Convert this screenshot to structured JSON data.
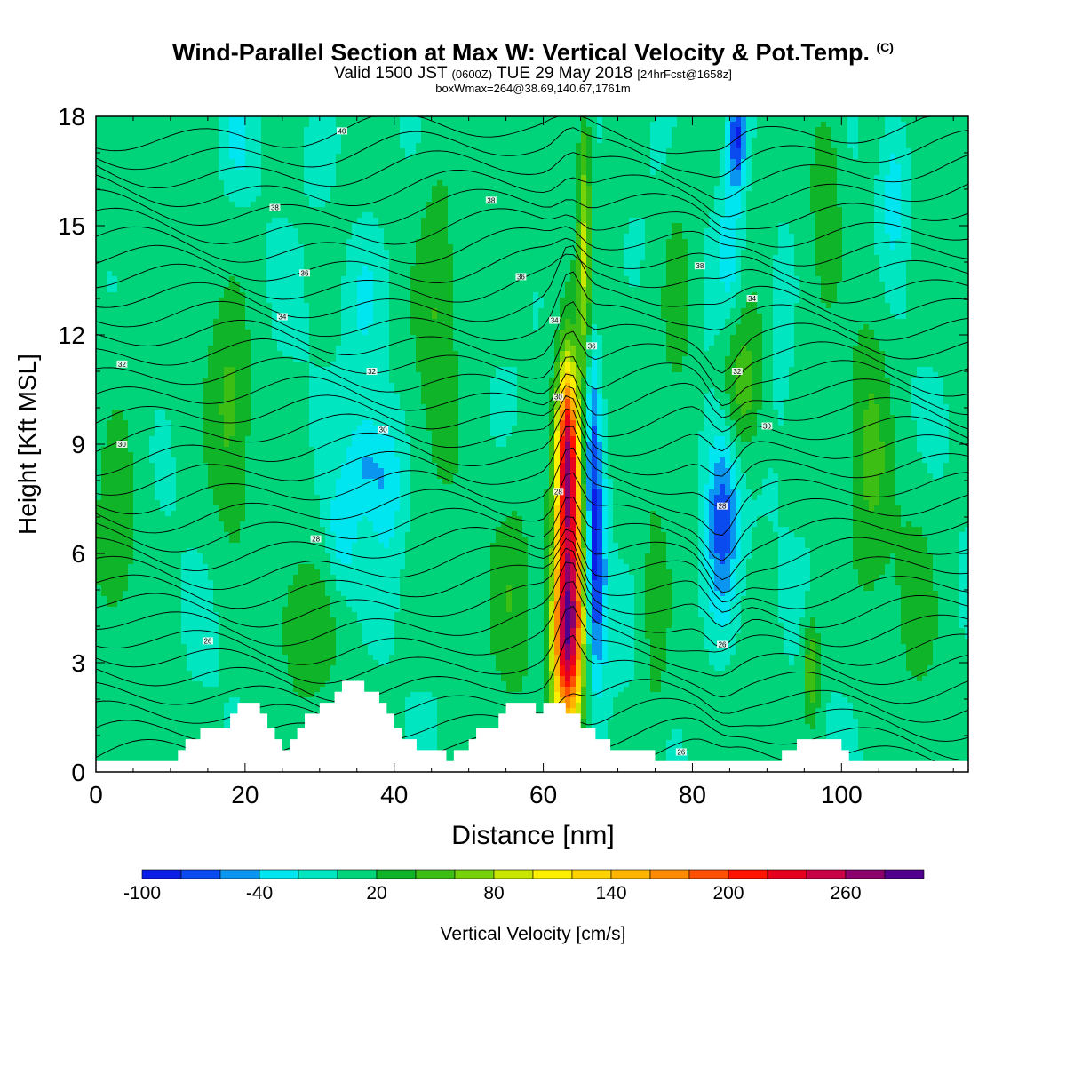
{
  "title": {
    "main": "Wind-Parallel Section at Max W: Vertical Velocity & Pot.Temp.",
    "copyright": "(C)",
    "valid_prefix": "Valid 1500 JST",
    "valid_z": "(0600Z)",
    "valid_date": "TUE 29 May 2018",
    "forecast": "[24hrFcst@1658z]",
    "box": "boxWmax=264@38.69,140.67,1761m"
  },
  "chart_data": {
    "type": "heatmap",
    "xlabel": "Distance [nm]",
    "ylabel": "Height [Kft MSL]",
    "xlim": [
      0,
      117
    ],
    "ylim": [
      0,
      18
    ],
    "x_ticks": [
      0,
      20,
      40,
      60,
      80,
      100
    ],
    "y_ticks": [
      0,
      3,
      6,
      9,
      12,
      15,
      18
    ],
    "colorbar": {
      "label": "Vertical Velocity [cm/s]",
      "min": -100,
      "max": 300,
      "step": 20,
      "tick_values": [
        -100,
        -40,
        20,
        80,
        140,
        200,
        260
      ],
      "colors": [
        "#0a1ee6",
        "#0a4bf0",
        "#0a96f0",
        "#00e6f0",
        "#00e6c0",
        "#00d47a",
        "#10b428",
        "#3cbe14",
        "#78d20a",
        "#c8e600",
        "#fff000",
        "#ffd200",
        "#ffb400",
        "#ff8c00",
        "#ff5000",
        "#ff1400",
        "#e6001e",
        "#c80046",
        "#8c006e",
        "#50008c"
      ]
    },
    "terrain_nm": [
      [
        0,
        0.3
      ],
      [
        10,
        0.3
      ],
      [
        11,
        0.6
      ],
      [
        12,
        0.9
      ],
      [
        14,
        1.2
      ],
      [
        18,
        1.6
      ],
      [
        19,
        1.9
      ],
      [
        21,
        1.9
      ],
      [
        22,
        1.6
      ],
      [
        23,
        1.2
      ],
      [
        24,
        0.9
      ],
      [
        25,
        0.6
      ],
      [
        26,
        0.9
      ],
      [
        27,
        1.2
      ],
      [
        28,
        1.6
      ],
      [
        30,
        1.9
      ],
      [
        32,
        2.2
      ],
      [
        33,
        2.5
      ],
      [
        35,
        2.5
      ],
      [
        36,
        2.2
      ],
      [
        38,
        1.9
      ],
      [
        39,
        1.6
      ],
      [
        40,
        1.2
      ],
      [
        41,
        0.9
      ],
      [
        43,
        0.6
      ],
      [
        46,
        0.6
      ],
      [
        47,
        0.3
      ],
      [
        48,
        0.6
      ],
      [
        50,
        0.9
      ],
      [
        51,
        1.2
      ],
      [
        54,
        1.6
      ],
      [
        55,
        1.9
      ],
      [
        58,
        1.9
      ],
      [
        59,
        1.6
      ],
      [
        60,
        1.9
      ],
      [
        62,
        1.9
      ],
      [
        63,
        1.6
      ],
      [
        65,
        1.2
      ],
      [
        67,
        0.9
      ],
      [
        69,
        0.6
      ],
      [
        74,
        0.6
      ],
      [
        75,
        0.3
      ],
      [
        86,
        0.3
      ],
      [
        91,
        0.3
      ],
      [
        92,
        0.6
      ],
      [
        94,
        0.9
      ],
      [
        99,
        0.9
      ],
      [
        100,
        0.6
      ],
      [
        101,
        0.3
      ],
      [
        117,
        0.3
      ]
    ],
    "features": [
      {
        "x": 63.5,
        "y": 5.5,
        "sx": 1.4,
        "sy": 3.0,
        "w": 210
      },
      {
        "x": 63.2,
        "y": 9.0,
        "sx": 0.9,
        "sy": 1.6,
        "w": 160
      },
      {
        "x": 63.0,
        "y": 3.5,
        "sx": 1.4,
        "sy": 1.5,
        "w": 110
      },
      {
        "x": 65.5,
        "y": 14.5,
        "sx": 0.6,
        "sy": 3.0,
        "w": 70
      },
      {
        "x": 67.0,
        "y": 5.5,
        "sx": 1.0,
        "sy": 2.2,
        "w": -95
      },
      {
        "x": 66.5,
        "y": 9.5,
        "sx": 0.8,
        "sy": 2.0,
        "w": -55
      },
      {
        "x": 84.0,
        "y": 7.0,
        "sx": 1.6,
        "sy": 2.0,
        "w": -80
      },
      {
        "x": 86.0,
        "y": 17.5,
        "sx": 0.9,
        "sy": 1.0,
        "w": -90
      },
      {
        "x": 85.0,
        "y": 14.5,
        "sx": 1.2,
        "sy": 1.5,
        "w": -40
      },
      {
        "x": 86.5,
        "y": 10.5,
        "sx": 2.0,
        "sy": 1.5,
        "w": 55
      },
      {
        "x": 96.0,
        "y": 2.8,
        "sx": 0.8,
        "sy": 1.0,
        "w": 60
      },
      {
        "x": 36.0,
        "y": 8.5,
        "sx": 1.5,
        "sy": 1.0,
        "w": -40
      },
      {
        "x": 39.0,
        "y": 8.0,
        "sx": 1.5,
        "sy": 1.5,
        "w": -40
      },
      {
        "x": 33.0,
        "y": 6.5,
        "sx": 1.5,
        "sy": 1.2,
        "w": -35
      },
      {
        "x": 36.0,
        "y": 13.0,
        "sx": 2.0,
        "sy": 1.5,
        "w": -30
      },
      {
        "x": 30.0,
        "y": 17.0,
        "sx": 1.5,
        "sy": 1.0,
        "w": -25
      },
      {
        "x": 19.0,
        "y": 17.5,
        "sx": 1.2,
        "sy": 1.0,
        "w": -30
      },
      {
        "x": 107.0,
        "y": 16.0,
        "sx": 1.2,
        "sy": 1.5,
        "w": -35
      },
      {
        "x": 18.0,
        "y": 10.0,
        "sx": 2.0,
        "sy": 2.5,
        "w": 35
      },
      {
        "x": 28.0,
        "y": 4.0,
        "sx": 3.0,
        "sy": 1.5,
        "w": 25
      },
      {
        "x": 46.0,
        "y": 13.0,
        "sx": 2.0,
        "sy": 3.0,
        "w": 35
      },
      {
        "x": 56.0,
        "y": 5.0,
        "sx": 2.0,
        "sy": 2.0,
        "w": 28
      },
      {
        "x": 3.0,
        "y": 7.0,
        "sx": 2.5,
        "sy": 3.0,
        "w": 25
      },
      {
        "x": 104.0,
        "y": 9.0,
        "sx": 2.0,
        "sy": 3.0,
        "w": 35
      },
      {
        "x": 78.0,
        "y": 13.0,
        "sx": 1.5,
        "sy": 2.0,
        "w": 30
      },
      {
        "x": 98.0,
        "y": 16.0,
        "sx": 1.5,
        "sy": 2.0,
        "w": 35
      },
      {
        "x": 75.0,
        "y": 4.0,
        "sx": 1.2,
        "sy": 2.5,
        "w": 25
      },
      {
        "x": 92.0,
        "y": 12.5,
        "sx": 1.2,
        "sy": 2.0,
        "w": -20
      },
      {
        "x": 110.0,
        "y": 5.0,
        "sx": 2.0,
        "sy": 2.0,
        "w": 20
      }
    ],
    "theta_contour_labels": [
      {
        "x": 33,
        "y": 17.6,
        "text": "40"
      },
      {
        "x": 24,
        "y": 15.5,
        "text": "38"
      },
      {
        "x": 53,
        "y": 15.7,
        "text": "38"
      },
      {
        "x": 28,
        "y": 13.7,
        "text": "36"
      },
      {
        "x": 57,
        "y": 13.6,
        "text": "36"
      },
      {
        "x": 81,
        "y": 13.9,
        "text": "38"
      },
      {
        "x": 25,
        "y": 12.5,
        "text": "34"
      },
      {
        "x": 61.5,
        "y": 12.4,
        "text": "34"
      },
      {
        "x": 88,
        "y": 13.0,
        "text": "34"
      },
      {
        "x": 3.5,
        "y": 11.2,
        "text": "32"
      },
      {
        "x": 37,
        "y": 11.0,
        "text": "32"
      },
      {
        "x": 86,
        "y": 11.0,
        "text": "32"
      },
      {
        "x": 66.5,
        "y": 11.7,
        "text": "36"
      },
      {
        "x": 62,
        "y": 10.3,
        "text": "30"
      },
      {
        "x": 38.5,
        "y": 9.4,
        "text": "30"
      },
      {
        "x": 3.5,
        "y": 9.0,
        "text": "30"
      },
      {
        "x": 90,
        "y": 9.5,
        "text": "30"
      },
      {
        "x": 62,
        "y": 7.7,
        "text": "28"
      },
      {
        "x": 84,
        "y": 7.3,
        "text": "28"
      },
      {
        "x": 29.5,
        "y": 6.4,
        "text": "28"
      },
      {
        "x": 15,
        "y": 3.6,
        "text": "26"
      },
      {
        "x": 84,
        "y": 3.5,
        "text": "26"
      },
      {
        "x": 78.5,
        "y": 0.55,
        "text": "26"
      }
    ]
  }
}
